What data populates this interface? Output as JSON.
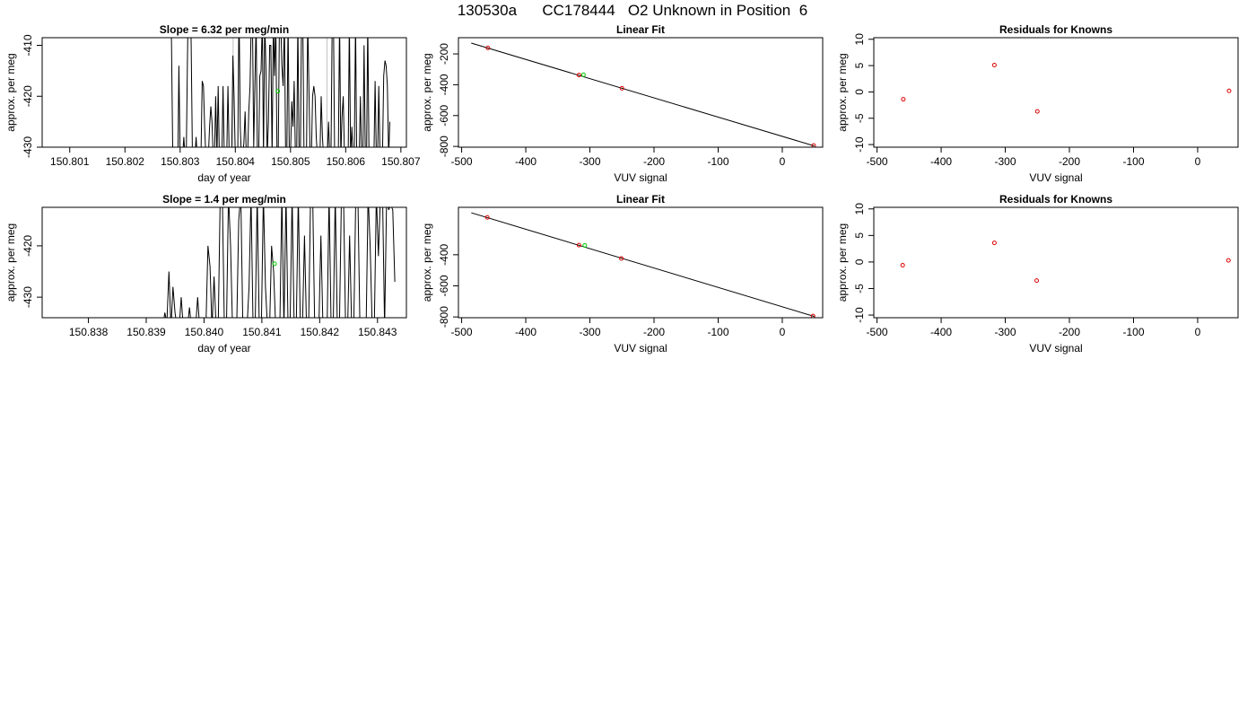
{
  "page_title": "130530a      CC178444   O2 Unknown in Position  6",
  "chart_data": [
    {
      "id": "ts1",
      "type": "line",
      "title": "Slope =  6.32  per meg/min",
      "xlabel": "day of year",
      "ylabel": "approx. per meg",
      "xlim": [
        150.8005,
        150.8071
      ],
      "ylim": [
        -430,
        -408.5
      ],
      "xticks": [
        150.801,
        150.802,
        150.803,
        150.804,
        150.805,
        150.806,
        150.807
      ],
      "xtick_labels": [
        "150.801",
        "150.802",
        "150.803",
        "150.804",
        "150.805",
        "150.806",
        "150.807"
      ],
      "yticks": [
        -410,
        -420,
        -430
      ],
      "ytick_labels": [
        "-410",
        "-420",
        "-430"
      ],
      "vlines": [
        150.80396,
        150.80566
      ],
      "line_color": "#000000",
      "vline_color": "#bfbfbf",
      "series_x_start": 150.8028,
      "series_x_end": 150.8068,
      "series_y": [
        -395,
        -395,
        -410,
        -432,
        -432,
        -432,
        -436,
        -436,
        -414,
        -432,
        -432,
        -432,
        -428,
        -432,
        -432,
        -412,
        -395,
        -395,
        -410,
        -432,
        -432,
        -432,
        -428,
        -432,
        -432,
        -432,
        -432,
        -417,
        -418,
        -426,
        -432,
        -432,
        -432,
        -426,
        -422,
        -425,
        -432,
        -432,
        -420,
        -432,
        -418,
        -432,
        -430,
        -432,
        -418,
        -432,
        -432,
        -432,
        -418,
        -432,
        -432,
        -432,
        -412,
        -420,
        -432,
        -432,
        -432,
        -402,
        -426,
        -432,
        -432,
        -429,
        -423,
        -432,
        -432,
        -423,
        -418,
        -405,
        -405,
        -430,
        -417,
        -405,
        -432,
        -432,
        -416,
        -415,
        -405,
        -432,
        -405,
        -415,
        -432,
        -425,
        -410,
        -410,
        -432,
        -405,
        -416,
        -405,
        -432,
        -432,
        -405,
        -405,
        -414,
        -418,
        -405,
        -432,
        -432,
        -405,
        -432,
        -432,
        -421,
        -426,
        -417,
        -432,
        -432,
        -405,
        -432,
        -432,
        -405,
        -405,
        -432,
        -432,
        -432,
        -405,
        -418,
        -432,
        -432,
        -420,
        -418,
        -420,
        -428,
        -432,
        -432,
        -432,
        -420,
        -428,
        -432,
        -432,
        -432,
        -432,
        -425,
        -432,
        -432,
        -405,
        -405,
        -432,
        -432,
        -432,
        -432,
        -405,
        -432,
        -424,
        -420,
        -432,
        -432,
        -432,
        -432,
        -405,
        -432,
        -426,
        -432,
        -432,
        -405,
        -432,
        -432,
        -432,
        -420,
        -432,
        -432,
        -410,
        -432,
        -432,
        -405,
        -432,
        -432,
        -432,
        -432,
        -432,
        -417,
        -432,
        -432,
        -418,
        -432,
        -432,
        -432,
        -416,
        -413,
        -414,
        -418,
        -432,
        -425
      ],
      "green_points": [
        {
          "x": 150.80477,
          "y": -419
        }
      ],
      "point_color": "#00cc00"
    },
    {
      "id": "fit1",
      "type": "scatter",
      "title": "Linear Fit",
      "xlabel": "VUV signal",
      "ylabel": "approx. per meg",
      "xlim": [
        -505,
        63
      ],
      "ylim": [
        -805,
        -95
      ],
      "xticks": [
        -500,
        -400,
        -300,
        -200,
        -100,
        0
      ],
      "xtick_labels": [
        "-500",
        "-400",
        "-300",
        "-200",
        "-100",
        "0"
      ],
      "yticks": [
        -200,
        -400,
        -600,
        -800
      ],
      "ytick_labels": [
        "-200",
        "-400",
        "-600",
        "-800"
      ],
      "fit_line": {
        "x": [
          -485,
          50
        ],
        "y": [
          -130,
          -797
        ]
      },
      "red_points": [
        {
          "x": -459,
          "y": -161
        },
        {
          "x": -317,
          "y": -337
        },
        {
          "x": -250,
          "y": -423
        },
        {
          "x": 49,
          "y": -794
        }
      ],
      "green_points": [
        {
          "x": -310,
          "y": -335
        }
      ],
      "point_color": "#dd0000",
      "green_color": "#00cc00",
      "line_color": "#000000"
    },
    {
      "id": "res1",
      "type": "scatter",
      "title": "Residuals for Knowns",
      "xlabel": "VUV signal",
      "ylabel": "approx. per meg",
      "xlim": [
        -505,
        63
      ],
      "ylim": [
        -10.5,
        10.3
      ],
      "xticks": [
        -500,
        -400,
        -300,
        -200,
        -100,
        0
      ],
      "xtick_labels": [
        "-500",
        "-400",
        "-300",
        "-200",
        "-100",
        "0"
      ],
      "yticks": [
        10,
        5,
        0,
        -5,
        -10
      ],
      "ytick_labels": [
        "10",
        "5",
        "0",
        "-5",
        "-10"
      ],
      "red_points": [
        {
          "x": -459,
          "y": -1.4
        },
        {
          "x": -317,
          "y": 5.1
        },
        {
          "x": -250,
          "y": -3.7
        },
        {
          "x": 49,
          "y": 0.2
        }
      ],
      "point_color": "#dd0000"
    },
    {
      "id": "ts2",
      "type": "line",
      "title": "Slope =  1.4  per meg/min",
      "xlabel": "day of year",
      "ylabel": "approx. per meg",
      "xlim": [
        150.8372,
        150.8435
      ],
      "ylim": [
        -434,
        -412.5
      ],
      "xticks": [
        150.838,
        150.839,
        150.84,
        150.841,
        150.842,
        150.843
      ],
      "xtick_labels": [
        "150.838",
        "150.839",
        "150.840",
        "150.841",
        "150.842",
        "150.843"
      ],
      "yticks": [
        -420,
        -430
      ],
      "ytick_labels": [
        "-420",
        "-430"
      ],
      "vlines": [],
      "line_color": "#000000",
      "vline_color": "#bfbfbf",
      "series_x_start": 150.83925,
      "series_x_end": 150.8433,
      "series_y": [
        -435,
        -436,
        -433,
        -435,
        -425,
        -436,
        -428,
        -433,
        -436,
        -436,
        -430,
        -436,
        -436,
        -436,
        -432,
        -436,
        -436,
        -436,
        -430,
        -436,
        -436,
        -436,
        -436,
        -420,
        -424,
        -436,
        -426,
        -436,
        -436,
        -410,
        -410,
        -436,
        -436,
        -410,
        -420,
        -436,
        -436,
        -436,
        -415,
        -410,
        -436,
        -436,
        -436,
        -428,
        -410,
        -436,
        -436,
        -410,
        -436,
        -436,
        -410,
        -428,
        -436,
        -436,
        -420,
        -425,
        -436,
        -436,
        -436,
        -410,
        -436,
        -410,
        -436,
        -436,
        -410,
        -436,
        -436,
        -410,
        -436,
        -436,
        -418,
        -436,
        -436,
        -410,
        -410,
        -436,
        -436,
        -436,
        -418,
        -436,
        -436,
        -436,
        -410,
        -436,
        -436,
        -410,
        -436,
        -436,
        -410,
        -410,
        -436,
        -436,
        -418,
        -436,
        -436,
        -410,
        -410,
        -436,
        -436,
        -436,
        -436,
        -410,
        -420,
        -436,
        -436,
        -410,
        -422,
        -410,
        -410,
        -436,
        -410,
        -413,
        -412,
        -413,
        -427
      ],
      "green_points": [
        {
          "x": 150.84122,
          "y": -423.5
        }
      ],
      "point_color": "#00cc00"
    },
    {
      "id": "fit2",
      "type": "scatter",
      "title": "Linear Fit",
      "xlabel": "VUV signal",
      "ylabel": "approx. per meg",
      "xlim": [
        -505,
        63
      ],
      "ylim": [
        -805,
        -95
      ],
      "xticks": [
        -500,
        -400,
        -300,
        -200,
        -100,
        0
      ],
      "xtick_labels": [
        "-500",
        "-400",
        "-300",
        "-200",
        "-100",
        "0"
      ],
      "yticks": [
        -400,
        -600,
        -800
      ],
      "ytick_labels": [
        "-400",
        "-600",
        "-800"
      ],
      "fit_line": {
        "x": [
          -485,
          50
        ],
        "y": [
          -130,
          -797
        ]
      },
      "red_points": [
        {
          "x": -460,
          "y": -160
        },
        {
          "x": -317,
          "y": -338
        },
        {
          "x": -251,
          "y": -424
        },
        {
          "x": 48,
          "y": -794
        }
      ],
      "green_points": [
        {
          "x": -308,
          "y": -340
        }
      ],
      "point_color": "#dd0000",
      "green_color": "#00cc00",
      "line_color": "#000000"
    },
    {
      "id": "res2",
      "type": "scatter",
      "title": "Residuals for Knowns",
      "xlabel": "VUV signal",
      "ylabel": "approx. per meg",
      "xlim": [
        -505,
        63
      ],
      "ylim": [
        -10.5,
        10.3
      ],
      "xticks": [
        -500,
        -400,
        -300,
        -200,
        -100,
        0
      ],
      "xtick_labels": [
        "-500",
        "-400",
        "-300",
        "-200",
        "-100",
        "0"
      ],
      "yticks": [
        10,
        5,
        0,
        -5,
        -10
      ],
      "ytick_labels": [
        "10",
        "5",
        "0",
        "-5",
        "-10"
      ],
      "red_points": [
        {
          "x": -460,
          "y": -0.6
        },
        {
          "x": -317,
          "y": 3.6
        },
        {
          "x": -251,
          "y": -3.5
        },
        {
          "x": 48,
          "y": 0.3
        }
      ],
      "point_color": "#dd0000"
    }
  ]
}
